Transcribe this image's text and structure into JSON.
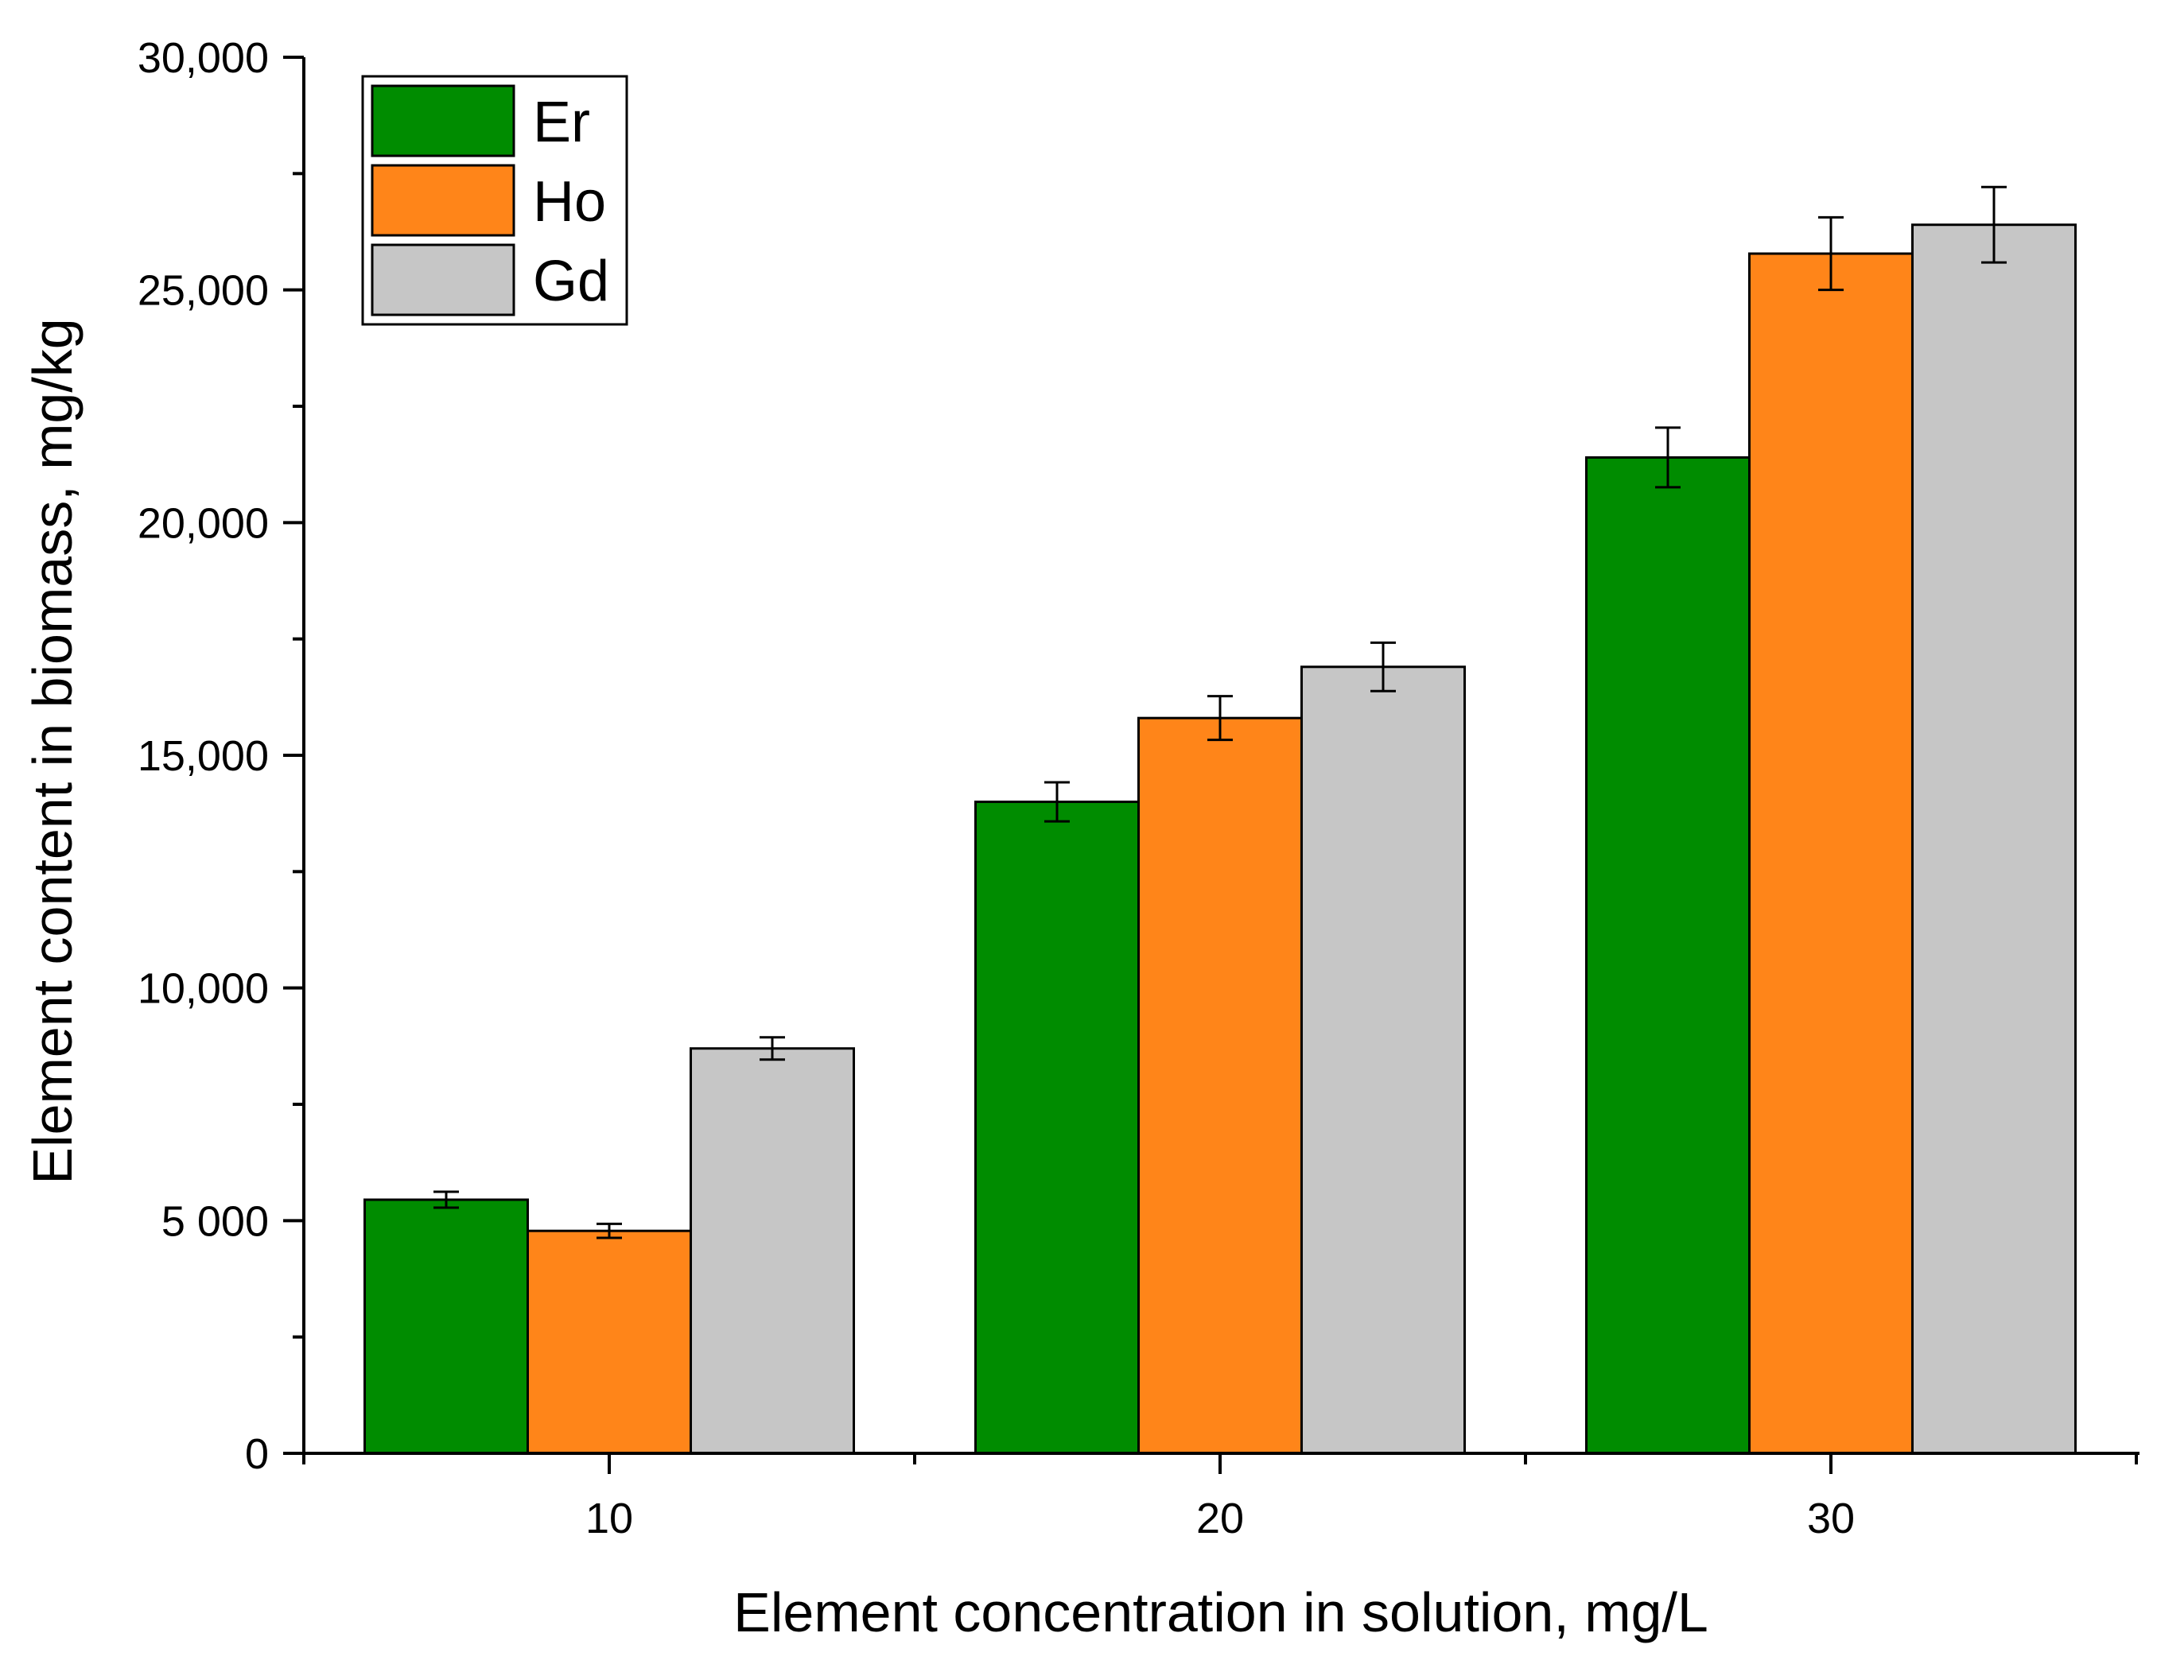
{
  "chart_data": {
    "type": "bar",
    "title": "",
    "xlabel": "Element concentration in solution, mg/L",
    "ylabel": "Element content in biomass, mg/kg",
    "categories": [
      "10",
      "20",
      "30"
    ],
    "ylim": [
      0,
      30000
    ],
    "y_ticks": [
      {
        "value": 0,
        "label": "0"
      },
      {
        "value": 5000,
        "label": "5 000"
      },
      {
        "value": 10000,
        "label": "10,000"
      },
      {
        "value": 15000,
        "label": "15,000"
      },
      {
        "value": 20000,
        "label": "20,000"
      },
      {
        "value": 25000,
        "label": "25,000"
      },
      {
        "value": 30000,
        "label": "30,000"
      }
    ],
    "series": [
      {
        "name": "Er",
        "color": "#008c00",
        "values": [
          5450,
          14000,
          21400
        ],
        "errors": [
          170,
          420,
          640
        ]
      },
      {
        "name": "Ho",
        "color": "#ff8519",
        "values": [
          4780,
          15800,
          25780
        ],
        "errors": [
          150,
          470,
          780
        ]
      },
      {
        "name": "Gd",
        "color": "#c6c6c6",
        "values": [
          8700,
          16900,
          26400
        ],
        "errors": [
          240,
          520,
          810
        ]
      }
    ],
    "grid": false,
    "legend_position": "top-left"
  }
}
